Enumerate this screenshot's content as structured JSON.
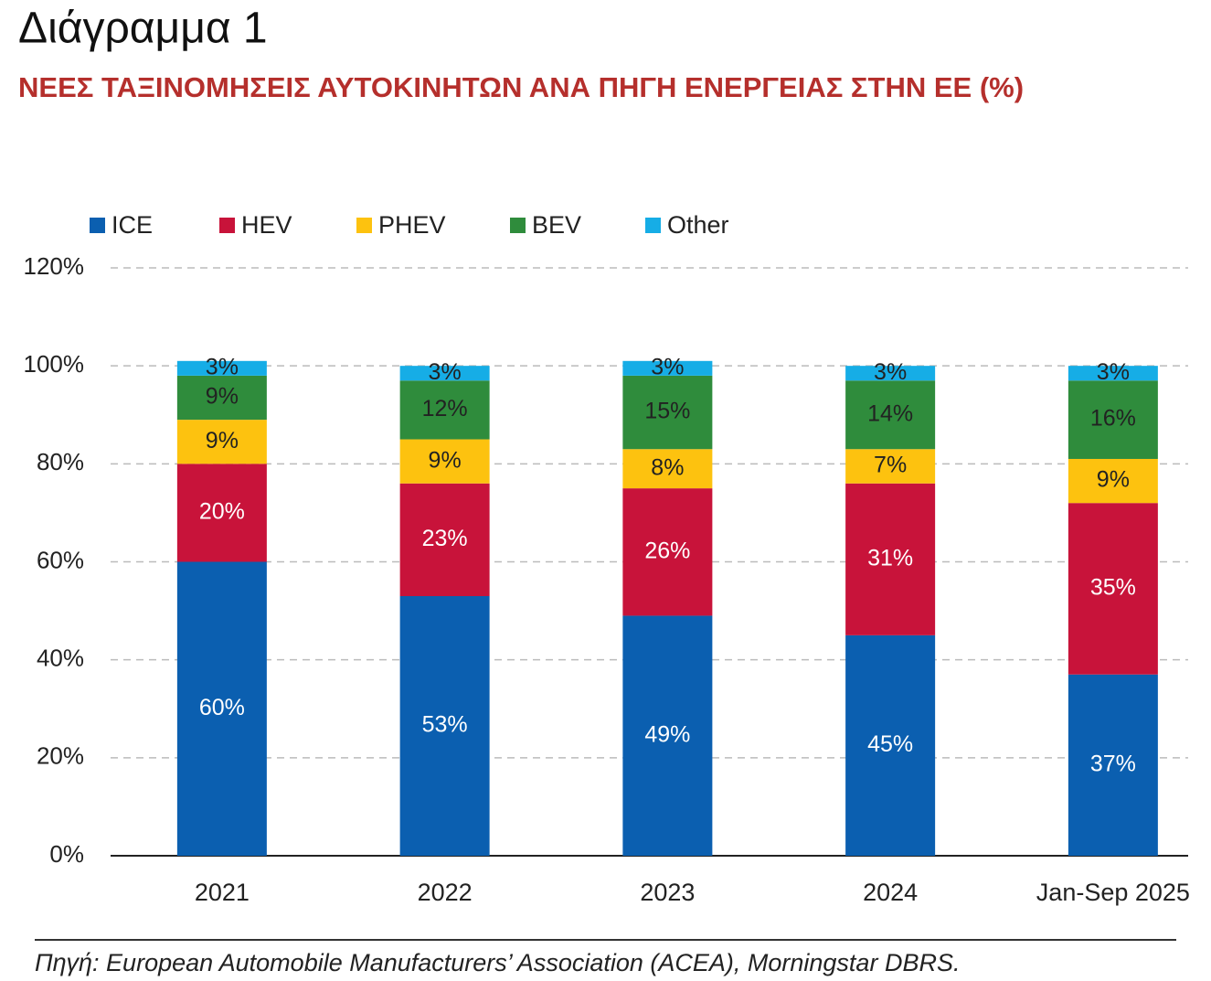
{
  "chart_data": {
    "type": "stacked_bar",
    "title": "Διάγραμμα 1",
    "subtitle": "ΝΕΕΣ ΤΑΞΙΝΟΜΗΣΕΙΣ ΑΥΤΟΚΙΝΗΤΩΝ ΑΝΑ ΠΗΓΗ ΕΝΕΡΓΕΙΑΣ ΣΤΗΝ ΕΕ (%)",
    "source": "Πηγή: European Automobile Manufacturers’ Association (ACEA), Morningstar DBRS.",
    "categories": [
      "2021",
      "2022",
      "2023",
      "2024",
      "Jan-Sep 2025"
    ],
    "series": [
      {
        "name": "ICE",
        "color": "#0b5fb0",
        "values": [
          60,
          53,
          49,
          45,
          37
        ],
        "value_labels": [
          "60%",
          "53%",
          "49%",
          "45%",
          "37%"
        ]
      },
      {
        "name": "HEV",
        "color": "#c8133a",
        "values": [
          20,
          23,
          26,
          31,
          35
        ],
        "value_labels": [
          "20%",
          "23%",
          "26%",
          "31%",
          "35%"
        ]
      },
      {
        "name": "PHEV",
        "color": "#fdc20f",
        "values": [
          9,
          9,
          8,
          7,
          9
        ],
        "value_labels": [
          "9%",
          "9%",
          "8%",
          "7%",
          "9%"
        ]
      },
      {
        "name": "BEV",
        "color": "#2f8c3c",
        "values": [
          9,
          12,
          15,
          14,
          16
        ],
        "value_labels": [
          "9%",
          "12%",
          "15%",
          "14%",
          "16%"
        ]
      },
      {
        "name": "Other",
        "color": "#16ade6",
        "values": [
          3,
          3,
          3,
          3,
          3
        ],
        "value_labels": [
          "3%",
          "3%",
          "3%",
          "3%",
          "3%"
        ]
      }
    ],
    "ylim": [
      0,
      120
    ],
    "yticks": [
      {
        "value": 0,
        "label": "0%"
      },
      {
        "value": 20,
        "label": "20%"
      },
      {
        "value": 40,
        "label": "40%"
      },
      {
        "value": 60,
        "label": "60%"
      },
      {
        "value": 80,
        "label": "80%"
      },
      {
        "value": 100,
        "label": "100%"
      },
      {
        "value": 120,
        "label": "120%"
      }
    ],
    "grid": true,
    "legend": "top"
  }
}
